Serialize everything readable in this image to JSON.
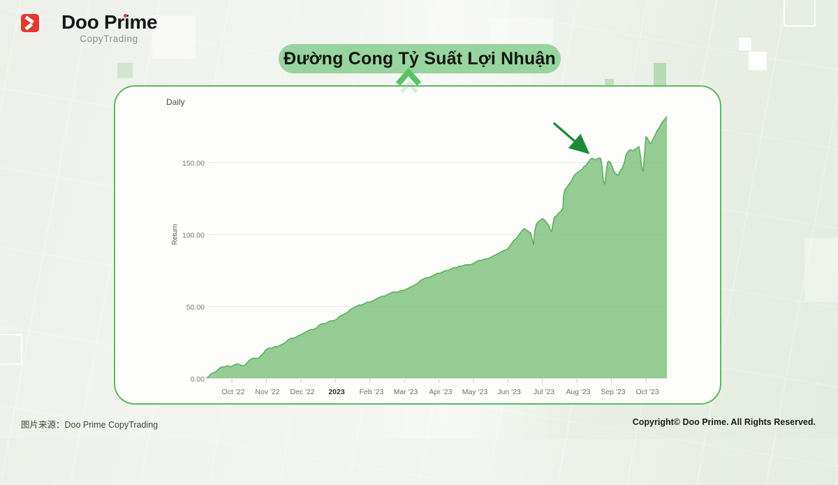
{
  "header": {
    "brand": "Doo Prime",
    "brand_sub": "CopyTrading"
  },
  "title_banner": {
    "text": "Đường Cong Tỷ Suất Lợi Nhuận"
  },
  "footer": {
    "source": "图片来源：Doo Prime CopyTrading",
    "copyright": "Copyright© Doo Prime. All Rights Reserved."
  },
  "colors": {
    "brand_red": "#e23830",
    "pill_green": "#97d49e",
    "card_border_green": "#5cb761",
    "area_fill_green": "#8cc88c",
    "area_line_green": "#5fae61",
    "arrow_green": "#1e8a38",
    "gridline_gray": "#e7e7e7"
  },
  "chart_data": {
    "type": "area",
    "title": "Daily",
    "ylabel": "Return",
    "y_ticks": [
      "0.00",
      "50.00",
      "100.00",
      "150.00"
    ],
    "y_tick_values": [
      0,
      50,
      100,
      150
    ],
    "ylim": [
      0,
      190
    ],
    "x_ticks": [
      "Oct '22",
      "Nov '22",
      "Dec '22",
      "2023",
      "Feb '23",
      "Mar '23",
      "Apr '23",
      "May '23",
      "Jun '23",
      "Jul '23",
      "Aug '23",
      "Sep '23",
      "Oct '23"
    ],
    "emphasized_x_tick_index": 3,
    "x_span_note": "curve runs mid-Sep '22 to mid-Oct '23; x in points[] is px offset 0-660 across that span",
    "grid": "horizontal gridlines at 50/100/150, tick marks per month",
    "legend": "none",
    "annotation": {
      "type": "arrow",
      "description": "dark green arrow pointing down-right at the curve where it reaches ~150, between Aug '23 and Sep '23"
    },
    "peak_value": 182,
    "points": [
      [
        0,
        0
      ],
      [
        3,
        1
      ],
      [
        7,
        3
      ],
      [
        11,
        4
      ],
      [
        15,
        5
      ],
      [
        19,
        7
      ],
      [
        23,
        8
      ],
      [
        27,
        8
      ],
      [
        31,
        9
      ],
      [
        35,
        8
      ],
      [
        39,
        9
      ],
      [
        43,
        10
      ],
      [
        47,
        10
      ],
      [
        51,
        9
      ],
      [
        55,
        9
      ],
      [
        59,
        11
      ],
      [
        63,
        13
      ],
      [
        67,
        14
      ],
      [
        71,
        14
      ],
      [
        75,
        14
      ],
      [
        79,
        16
      ],
      [
        83,
        18
      ],
      [
        86,
        20
      ],
      [
        90,
        21
      ],
      [
        94,
        21
      ],
      [
        98,
        22
      ],
      [
        102,
        22
      ],
      [
        106,
        23
      ],
      [
        110,
        24
      ],
      [
        114,
        25
      ],
      [
        118,
        27
      ],
      [
        122,
        28
      ],
      [
        126,
        28
      ],
      [
        130,
        29
      ],
      [
        134,
        30
      ],
      [
        138,
        31
      ],
      [
        142,
        32
      ],
      [
        146,
        33
      ],
      [
        150,
        34
      ],
      [
        154,
        34
      ],
      [
        158,
        35
      ],
      [
        162,
        37
      ],
      [
        166,
        38
      ],
      [
        170,
        38
      ],
      [
        174,
        39
      ],
      [
        178,
        40
      ],
      [
        182,
        40
      ],
      [
        187,
        41
      ],
      [
        191,
        43
      ],
      [
        195,
        44
      ],
      [
        199,
        45
      ],
      [
        203,
        46
      ],
      [
        207,
        48
      ],
      [
        211,
        49
      ],
      [
        215,
        50
      ],
      [
        219,
        51
      ],
      [
        223,
        51
      ],
      [
        227,
        52
      ],
      [
        231,
        53
      ],
      [
        235,
        53
      ],
      [
        239,
        54
      ],
      [
        243,
        55
      ],
      [
        247,
        56
      ],
      [
        251,
        57
      ],
      [
        255,
        57
      ],
      [
        259,
        58
      ],
      [
        263,
        59
      ],
      [
        267,
        60
      ],
      [
        271,
        60
      ],
      [
        275,
        60
      ],
      [
        279,
        61
      ],
      [
        283,
        61
      ],
      [
        287,
        62
      ],
      [
        291,
        63
      ],
      [
        295,
        64
      ],
      [
        299,
        65
      ],
      [
        303,
        66
      ],
      [
        307,
        68
      ],
      [
        311,
        69
      ],
      [
        315,
        70
      ],
      [
        319,
        70
      ],
      [
        323,
        71
      ],
      [
        327,
        72
      ],
      [
        331,
        73
      ],
      [
        335,
        73
      ],
      [
        339,
        74
      ],
      [
        343,
        75
      ],
      [
        347,
        75
      ],
      [
        351,
        76
      ],
      [
        355,
        77
      ],
      [
        359,
        77
      ],
      [
        363,
        78
      ],
      [
        367,
        78
      ],
      [
        371,
        79
      ],
      [
        375,
        79
      ],
      [
        379,
        79
      ],
      [
        383,
        80
      ],
      [
        387,
        81
      ],
      [
        391,
        82
      ],
      [
        395,
        82
      ],
      [
        399,
        83
      ],
      [
        403,
        83
      ],
      [
        407,
        84
      ],
      [
        411,
        85
      ],
      [
        415,
        86
      ],
      [
        419,
        87
      ],
      [
        423,
        88
      ],
      [
        427,
        89
      ],
      [
        432,
        90
      ],
      [
        435,
        92
      ],
      [
        438,
        94
      ],
      [
        441,
        96
      ],
      [
        444,
        97
      ],
      [
        447,
        99
      ],
      [
        450,
        101
      ],
      [
        453,
        103
      ],
      [
        456,
        104
      ],
      [
        459,
        103
      ],
      [
        462,
        102
      ],
      [
        465,
        101
      ],
      [
        467,
        97
      ],
      [
        469,
        93
      ],
      [
        471,
        103
      ],
      [
        473,
        107
      ],
      [
        476,
        109
      ],
      [
        479,
        110
      ],
      [
        482,
        111
      ],
      [
        485,
        110
      ],
      [
        488,
        108
      ],
      [
        491,
        106
      ],
      [
        493,
        103
      ],
      [
        495,
        102
      ],
      [
        497,
        108
      ],
      [
        499,
        112
      ],
      [
        502,
        113
      ],
      [
        505,
        115
      ],
      [
        508,
        116
      ],
      [
        511,
        118
      ],
      [
        512,
        127
      ],
      [
        514,
        131
      ],
      [
        517,
        133
      ],
      [
        520,
        135
      ],
      [
        523,
        137
      ],
      [
        526,
        140
      ],
      [
        529,
        142
      ],
      [
        532,
        143
      ],
      [
        535,
        144
      ],
      [
        538,
        145
      ],
      [
        541,
        147
      ],
      [
        544,
        148
      ],
      [
        547,
        150
      ],
      [
        550,
        152
      ],
      [
        553,
        153
      ],
      [
        556,
        152
      ],
      [
        559,
        152
      ],
      [
        562,
        153
      ],
      [
        565,
        153
      ],
      [
        567,
        148
      ],
      [
        569,
        137
      ],
      [
        571,
        135
      ],
      [
        573,
        143
      ],
      [
        575,
        150
      ],
      [
        577,
        151
      ],
      [
        579,
        150
      ],
      [
        581,
        148
      ],
      [
        584,
        144
      ],
      [
        587,
        142
      ],
      [
        590,
        141
      ],
      [
        593,
        144
      ],
      [
        596,
        146
      ],
      [
        599,
        150
      ],
      [
        602,
        156
      ],
      [
        605,
        158
      ],
      [
        608,
        159
      ],
      [
        611,
        158
      ],
      [
        614,
        159
      ],
      [
        617,
        160
      ],
      [
        620,
        161
      ],
      [
        622,
        155
      ],
      [
        624,
        146
      ],
      [
        626,
        144
      ],
      [
        628,
        156
      ],
      [
        630,
        168
      ],
      [
        632,
        167
      ],
      [
        634,
        165
      ],
      [
        636,
        163
      ],
      [
        638,
        164
      ],
      [
        640,
        166
      ],
      [
        643,
        169
      ],
      [
        646,
        172
      ],
      [
        649,
        174
      ],
      [
        652,
        177
      ],
      [
        655,
        179
      ],
      [
        657,
        180
      ],
      [
        660,
        182
      ]
    ]
  }
}
